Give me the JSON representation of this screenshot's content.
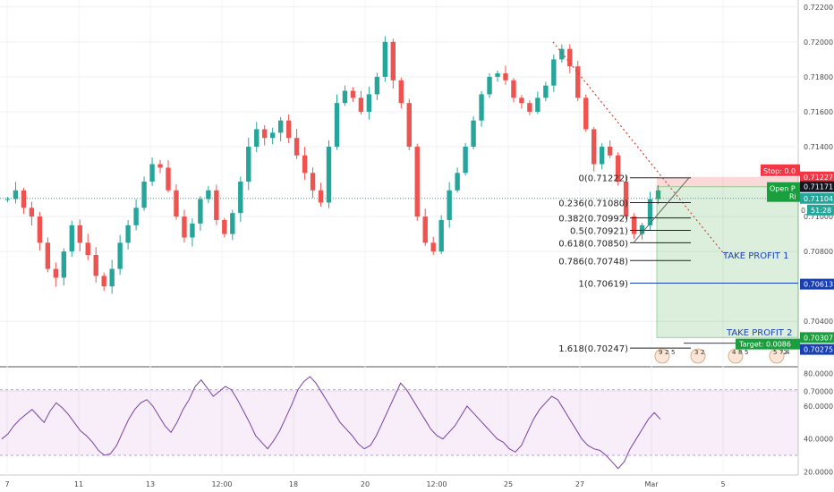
{
  "chart_data": [
    {
      "type": "candlestick",
      "colors": {
        "up": "#26a69a",
        "down": "#ef5350"
      },
      "ylim": [
        0.7015,
        0.7224
      ],
      "y_ticks": [
        "0.72200",
        "0.72000",
        "0.71800",
        "0.71600",
        "0.71400",
        "0.71000",
        "0.70800",
        "0.70400",
        "0.70000"
      ],
      "x_ticks": [
        "7",
        "11",
        "13",
        "12:00",
        "18",
        "20",
        "12:00",
        "25",
        "27",
        "Mar",
        "5"
      ],
      "ohlc_approx": [
        0.711,
        0.7115,
        0.7105,
        0.71,
        0.7085,
        0.707,
        0.7065,
        0.708,
        0.7095,
        0.7085,
        0.7078,
        0.7066,
        0.706,
        0.707,
        0.7085,
        0.7095,
        0.7105,
        0.712,
        0.713,
        0.7128,
        0.7115,
        0.71,
        0.7088,
        0.7096,
        0.711,
        0.7115,
        0.7098,
        0.709,
        0.7102,
        0.712,
        0.714,
        0.715,
        0.7145,
        0.7148,
        0.7155,
        0.7145,
        0.7135,
        0.7125,
        0.7115,
        0.7108,
        0.714,
        0.7165,
        0.7172,
        0.7168,
        0.716,
        0.717,
        0.718,
        0.72,
        0.7178,
        0.7165,
        0.714,
        0.71,
        0.7085,
        0.708,
        0.7098,
        0.7115,
        0.7125,
        0.714,
        0.7155,
        0.717,
        0.718,
        0.7182,
        0.7178,
        0.7168,
        0.7165,
        0.716,
        0.7168,
        0.7175,
        0.719,
        0.7196,
        0.7186,
        0.7168,
        0.715,
        0.713,
        0.714,
        0.7135,
        0.712,
        0.71,
        0.709,
        0.7095,
        0.711,
        0.7115
      ],
      "price_labels": {
        "stop": "Stop: 0.0",
        "stop_price": "0.71227",
        "current": "0.71171",
        "open_pl": "Open P",
        "open_pl2": "Ri",
        "price_b": "0.71104",
        "countdown": "51:28",
        "tp1_price": "0.70613",
        "tp2_price": "0.70307",
        "target": "Target: 0.0086",
        "target_price": "0.70275",
        "countdown_prefix": "0"
      },
      "fib_levels": [
        {
          "label": "0(0.71222)",
          "value": 0.71222
        },
        {
          "label": "0.236(0.71080)",
          "value": 0.7108
        },
        {
          "label": "0.382(0.70992)",
          "value": 0.70992
        },
        {
          "label": "0.5(0.70921)",
          "value": 0.70921
        },
        {
          "label": "0.618(0.70850)",
          "value": 0.7085
        },
        {
          "label": "0.786(0.70748)",
          "value": 0.70748
        },
        {
          "label": "1(0.70619)",
          "value": 0.70619
        },
        {
          "label": "1.618(0.70247)",
          "value": 0.70247
        }
      ],
      "annotations": [
        "TAKE PROFIT 1",
        "TAKE PROFIT 2"
      ],
      "events": [
        "9",
        "2",
        "5",
        "3",
        "2",
        "4",
        "8",
        "5",
        "5",
        "72",
        "4"
      ]
    },
    {
      "type": "line",
      "ylim": [
        18,
        84
      ],
      "y_ticks": [
        "80.0000",
        "60.0000",
        "40.0000",
        "20.0000"
      ],
      "band": [
        30,
        70
      ],
      "values": [
        40,
        43,
        48,
        52,
        55,
        58,
        54,
        50,
        57,
        62,
        59,
        55,
        50,
        45,
        42,
        38,
        33,
        30,
        31,
        36,
        44,
        52,
        58,
        62,
        64,
        60,
        54,
        48,
        44,
        50,
        58,
        64,
        72,
        76,
        71,
        66,
        69,
        72,
        70,
        64,
        57,
        50,
        42,
        38,
        34,
        39,
        45,
        53,
        61,
        70,
        75,
        78,
        74,
        68,
        62,
        56,
        50,
        46,
        42,
        37,
        34,
        36,
        42,
        50,
        58,
        66,
        74,
        70,
        64,
        58,
        52,
        46,
        42,
        40,
        44,
        48,
        54,
        60,
        56,
        52,
        48,
        44,
        40,
        38,
        34,
        32,
        36,
        44,
        52,
        58,
        62,
        66,
        64,
        58,
        52,
        46,
        40,
        36,
        34,
        33,
        30,
        26,
        22,
        26,
        34,
        40,
        46,
        52,
        56,
        52
      ]
    }
  ]
}
